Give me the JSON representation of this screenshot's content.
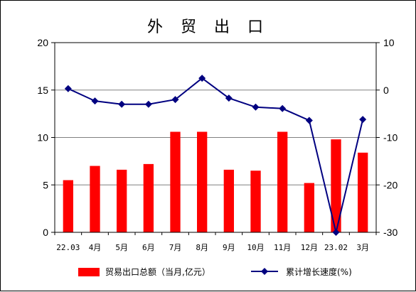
{
  "chart_data": {
    "type": "bar",
    "title": "外 贸 出 口",
    "categories": [
      "22.03",
      "4月",
      "5月",
      "6月",
      "7月",
      "8月",
      "9月",
      "10月",
      "11月",
      "12月",
      "23.02",
      "3月"
    ],
    "series": [
      {
        "name": "贸易出口总额（当月,亿元）",
        "type": "bar",
        "axis": "left",
        "color": "#ff0000",
        "values": [
          5.5,
          7.0,
          6.6,
          7.2,
          10.6,
          10.6,
          6.6,
          6.5,
          10.6,
          5.2,
          9.8,
          8.4
        ]
      },
      {
        "name": "累计增长速度(%)",
        "type": "line",
        "axis": "right",
        "color": "#000080",
        "marker": "diamond",
        "values": [
          0.3,
          -2.3,
          -3.0,
          -3.0,
          -2.0,
          2.5,
          -1.7,
          -3.6,
          -3.9,
          -6.4,
          -30.0,
          -6.2
        ]
      }
    ],
    "y_left": {
      "min": 0,
      "max": 20,
      "ticks": [
        0,
        5,
        10,
        15,
        20
      ]
    },
    "y_right": {
      "min": -30,
      "max": 10,
      "ticks": [
        -30,
        -20,
        -10,
        0,
        10
      ]
    },
    "grid": true,
    "legend_position": "bottom"
  }
}
